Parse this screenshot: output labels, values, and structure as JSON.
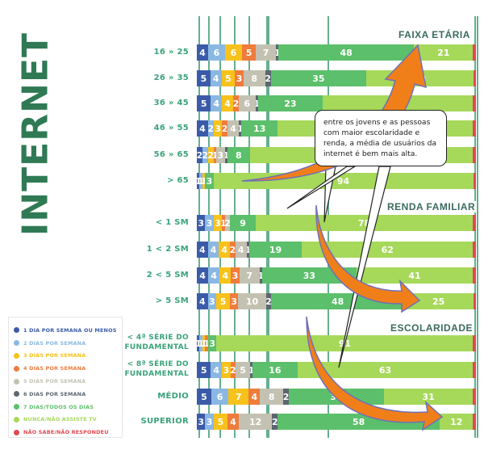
{
  "title": "INTERNET",
  "callout_text": "entre os jovens e as pessoas com maior escolaridade e renda, a média de usuários da internet é bem mais alta.",
  "legend": [
    {
      "label": "1 DIA POR SEMANA OU MENOS",
      "color": "#3b5ba9"
    },
    {
      "label": "2 DIAS POR SEMANA",
      "color": "#8ab8e3"
    },
    {
      "label": "3 DIAS POR SEMANA",
      "color": "#f7c21b"
    },
    {
      "label": "4 DIAS POR SEMANA",
      "color": "#ef7c3a"
    },
    {
      "label": "5 DIAS POR SEMANA",
      "color": "#c3c2b2"
    },
    {
      "label": "6 DIAS POR SEMANA",
      "color": "#5b6670"
    },
    {
      "label": "7 DIAS/TODOS OS DIAS",
      "color": "#5cbf6b"
    },
    {
      "label": "NUNCA/NÃO ASSISTE TV",
      "color": "#a6d85a"
    },
    {
      "label": "NÃO SABE/NÃO RESPONDEU",
      "color": "#e2474f"
    }
  ],
  "chart_data": {
    "type": "bar",
    "orientation": "horizontal-stacked-100",
    "title": "INTERNET",
    "series_names": [
      "1 DIA POR SEMANA OU MENOS",
      "2 DIAS POR SEMANA",
      "3 DIAS POR SEMANA",
      "4 DIAS POR SEMANA",
      "5 DIAS POR SEMANA",
      "6 DIAS POR SEMANA",
      "7 DIAS/TODOS OS DIAS",
      "NUNCA/NÃO ASSISTE TV",
      "NÃO SABE/NÃO RESPONDEU"
    ],
    "groups": [
      {
        "title": "FAIXA ETÁRIA",
        "categories": [
          "16 » 25",
          "26 » 35",
          "36 » 45",
          "46 » 55",
          "56 » 65",
          "> 65"
        ],
        "rows": [
          [
            4,
            6,
            6,
            5,
            7,
            1,
            48,
            21,
            1
          ],
          [
            5,
            4,
            5,
            3,
            8,
            2,
            35,
            39,
            1
          ],
          [
            5,
            4,
            4,
            2,
            6,
            1,
            23,
            54,
            1
          ],
          [
            4,
            2,
            3,
            2,
            4,
            1,
            13,
            70,
            1
          ],
          [
            2,
            2,
            2,
            1,
            3,
            1,
            8,
            80,
            1
          ],
          [
            1,
            1,
            1,
            0,
            0,
            0,
            3,
            94,
            1
          ]
        ]
      },
      {
        "title": "RENDA FAMILIAR",
        "categories": [
          "< 1 SM",
          "1 < 2 SM",
          "2 < 5 SM",
          "> 5 SM"
        ],
        "rows": [
          [
            3,
            3,
            3,
            1,
            2,
            0,
            9,
            78,
            1
          ],
          [
            4,
            4,
            4,
            2,
            4,
            1,
            19,
            62,
            1
          ],
          [
            4,
            4,
            4,
            3,
            7,
            1,
            33,
            41,
            1
          ],
          [
            4,
            3,
            5,
            3,
            10,
            2,
            48,
            25,
            1
          ]
        ]
      },
      {
        "title": "ESCOLARIDADE",
        "categories": [
          "< 4ª SÉRIE DO FUNDAMENTAL",
          "< 8ª SÉRIE DO FUNDAMENTAL",
          "MÉDIO",
          "SUPERIOR"
        ],
        "rows": [
          [
            1,
            1,
            1,
            1,
            0,
            0,
            3,
            91,
            1
          ],
          [
            5,
            4,
            3,
            2,
            5,
            1,
            16,
            63,
            1
          ],
          [
            5,
            6,
            7,
            4,
            8,
            2,
            33,
            31,
            1
          ],
          [
            3,
            3,
            5,
            4,
            12,
            2,
            58,
            12,
            1
          ]
        ]
      }
    ],
    "xlim": [
      0,
      100
    ],
    "grid": true,
    "legend_position": "bottom-left"
  }
}
